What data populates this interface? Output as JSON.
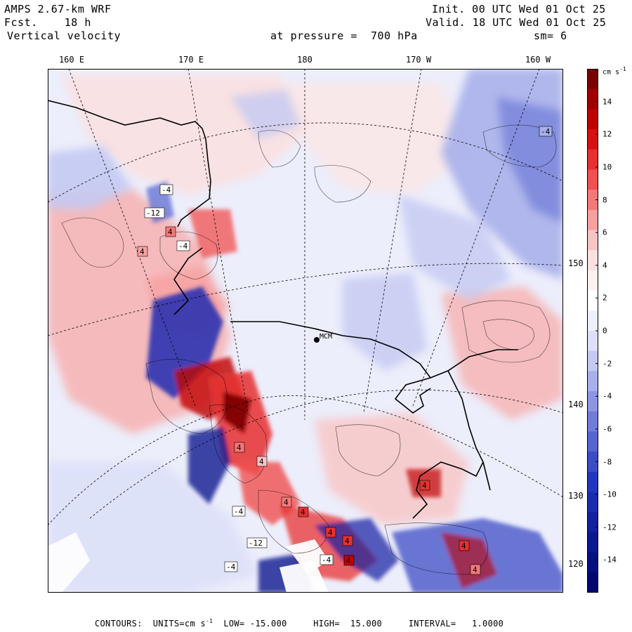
{
  "header": {
    "model": "AMPS 2.67-km WRF",
    "fcst_label": "Fcst.",
    "fcst_value": "18 h",
    "variable": "Vertical velocity",
    "init": "Init. 00 UTC Wed 01 Oct 25",
    "valid": "Valid. 18 UTC Wed 01 Oct 25",
    "level": "at pressure =  700 hPa",
    "smoothing": "sm= 6"
  },
  "map": {
    "longitude_labels": [
      "160 E",
      "170 E",
      "180",
      "170 W",
      "160 W"
    ],
    "latitude_labels": [
      "150 W",
      "140 W",
      "130 W",
      "120 W"
    ],
    "station_labels": [
      "MCM"
    ],
    "contour_labels": [
      "4",
      "-4",
      "-4",
      "-12",
      "4",
      "4",
      "4",
      "4",
      "-4",
      "4",
      "4",
      "-12",
      "4",
      "4",
      "-4",
      "-4",
      "4",
      "4",
      "4",
      "-4"
    ]
  },
  "colorbar": {
    "units": "cm s",
    "units_exp": "-1",
    "tick_labels": [
      "14",
      "12",
      "10",
      "8",
      "6",
      "4",
      "2",
      "0",
      "-2",
      "-4",
      "-6",
      "-8",
      "-10",
      "-12",
      "-14"
    ],
    "colors": [
      "#7a0000",
      "#a00000",
      "#c00000",
      "#d81010",
      "#e83030",
      "#f05050",
      "#f47878",
      "#f7a0a0",
      "#f9c4c4",
      "#fbe0e0",
      "#fdf0f0",
      "#ffffff",
      "#eef0fc",
      "#dde0f8",
      "#c4c9f2",
      "#a8b0ea",
      "#8c96e2",
      "#6f7cd8",
      "#5664d0",
      "#3c4cc6",
      "#2436be",
      "#1c2cb0",
      "#1420a0",
      "#0c1890",
      "#061080",
      "#020870"
    ]
  },
  "footer": {
    "text": "CONTOURS:  UNITS=cm s",
    "units_exp": "-1",
    "low": "LOW= -15.000",
    "high": "HIGH=  15.000",
    "interval": "INTERVAL=   1.0000"
  }
}
